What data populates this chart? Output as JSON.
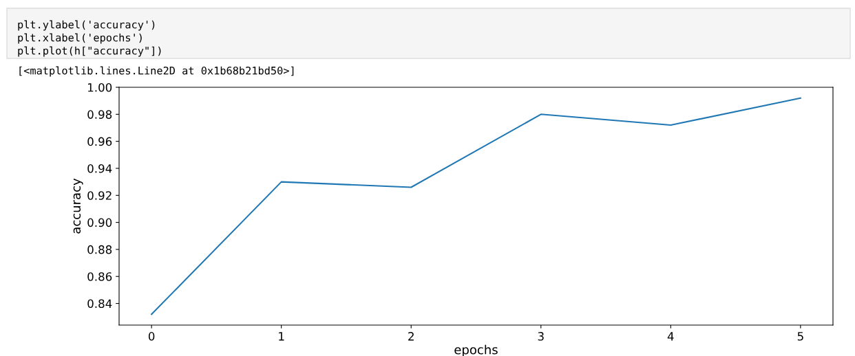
{
  "chart_data": {
    "type": "line",
    "xlabel": "epochs",
    "ylabel": "accuracy",
    "annotations": [
      "plt.ylabel('accuracy')",
      "plt.xlabel('epochs')",
      "plt.plot(h[\"accuracy\"])",
      "[<matplotlib.lines.Line2D at 0x1b68b21bd50>]"
    ],
    "x": [
      0,
      1,
      2,
      3,
      4,
      5
    ],
    "series": [
      {
        "color": "#1f77b4",
        "values": [
          0.832,
          0.93,
          0.926,
          0.98,
          0.972,
          0.992
        ]
      }
    ],
    "xlim": [
      -0.25,
      5.25
    ],
    "ylim": [
      0.824,
      1.0
    ],
    "xticks": [
      0,
      1,
      2,
      3,
      4,
      5
    ],
    "yticks": [
      {
        "value": 0.84,
        "label": "0.84"
      },
      {
        "value": 0.86,
        "label": "0.86"
      },
      {
        "value": 0.88,
        "label": "0.88"
      },
      {
        "value": 0.9,
        "label": "0.90"
      },
      {
        "value": 0.92,
        "label": "0.92"
      },
      {
        "value": 0.94,
        "label": "0.94"
      },
      {
        "value": 0.96,
        "label": "0.96"
      },
      {
        "value": 0.98,
        "label": "0.98"
      },
      {
        "value": 1.0,
        "label": "1.00"
      }
    ],
    "grid": false,
    "legend": false,
    "marker": "none",
    "line_style": "solid"
  }
}
